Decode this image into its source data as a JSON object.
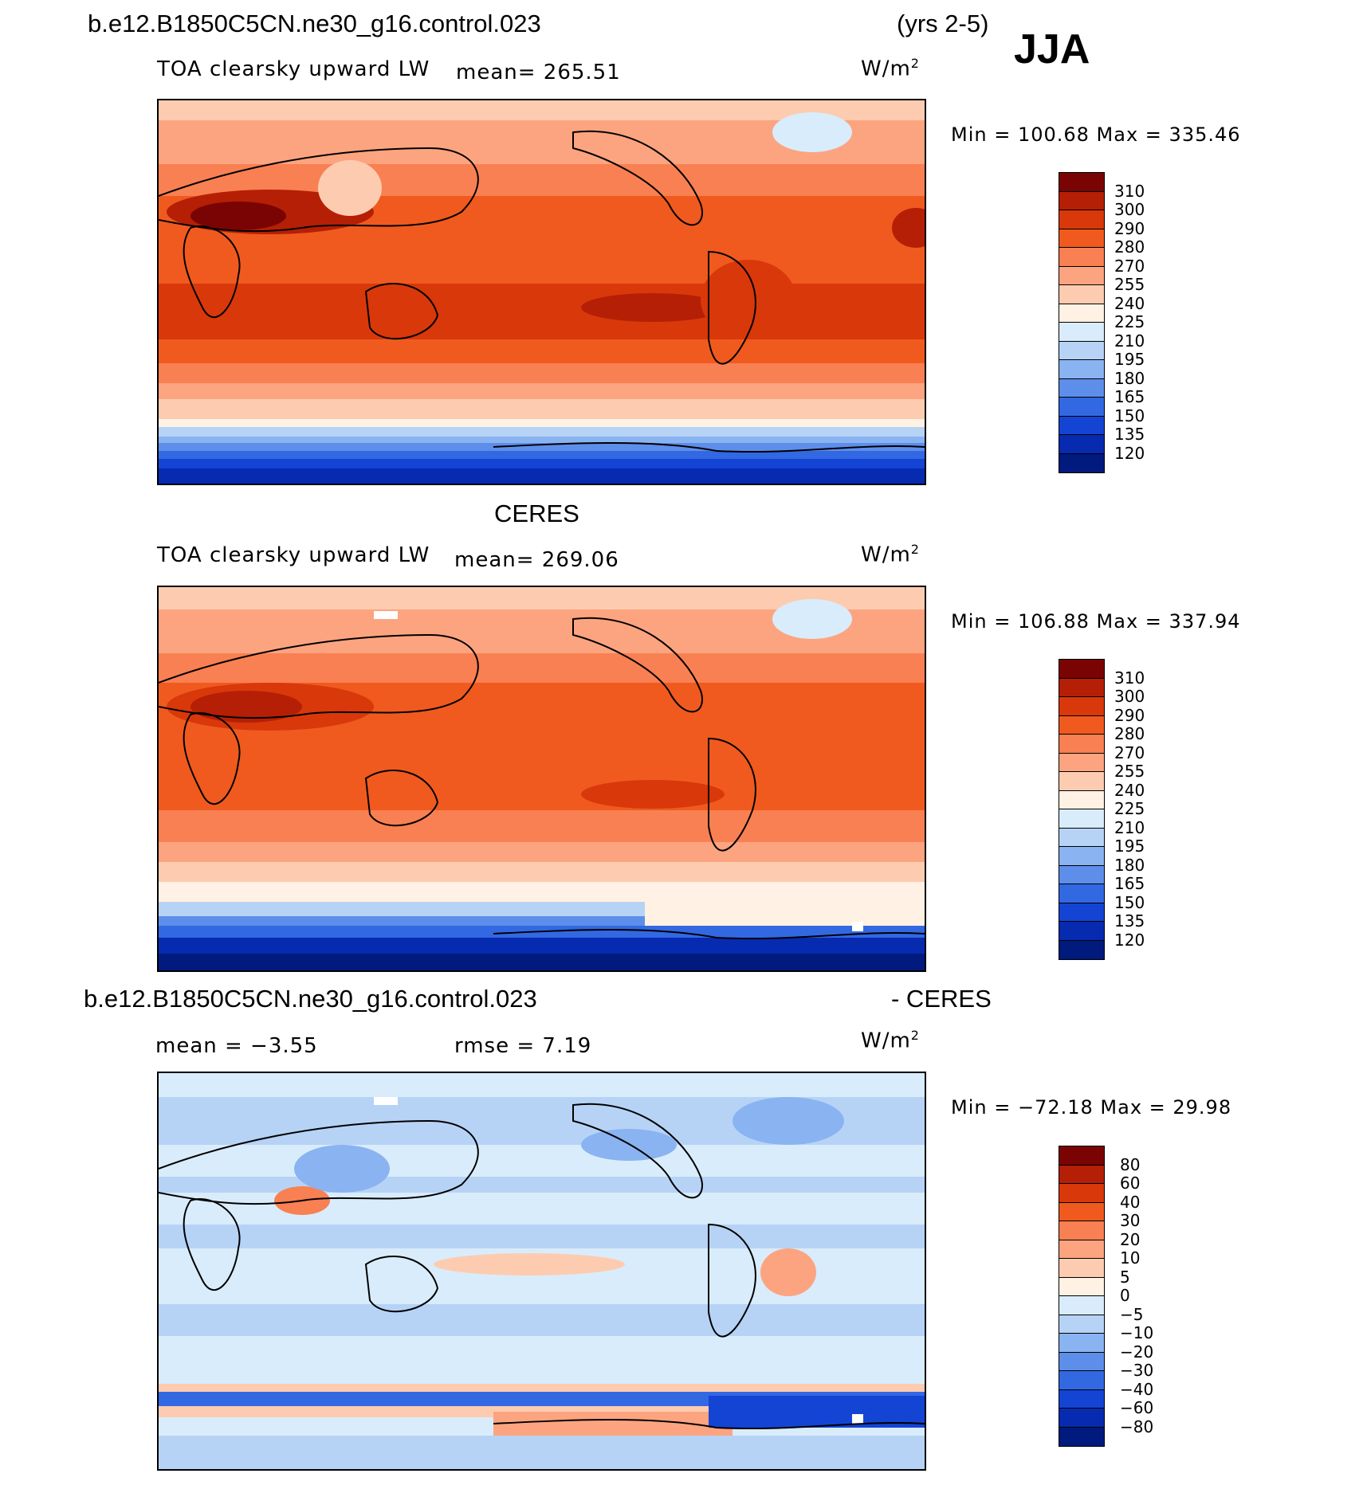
{
  "header": {
    "case_name": "b.e12.B1850C5CN.ne30_g16.control.023",
    "years": "(yrs 2-5)",
    "season": "JJA"
  },
  "panels": [
    {
      "id": "model",
      "title": "",
      "variable": "TOA clearsky upward LW",
      "mean_text": "mean= 265.51",
      "units": "W/m",
      "units_sup": "2",
      "minmax": "Min = 100.68 Max = 335.46"
    },
    {
      "id": "obs",
      "title": "CERES",
      "variable": "TOA clearsky upward LW",
      "mean_text": "mean= 269.06",
      "units": "W/m",
      "units_sup": "2",
      "minmax": "Min = 106.88 Max = 337.94"
    },
    {
      "id": "diff",
      "title": "b.e12.B1850C5CN.ne30_g16.control.023",
      "title2": "- CERES",
      "mean_text": "mean =   −3.55",
      "rmse_text": "rmse =    7.19",
      "units": "W/m",
      "units_sup": "2",
      "minmax": "Min = −72.18 Max =   29.98"
    }
  ],
  "colorbars": {
    "abs_levels": [
      "310",
      "300",
      "290",
      "280",
      "270",
      "255",
      "240",
      "225",
      "210",
      "195",
      "180",
      "165",
      "150",
      "135",
      "120"
    ],
    "abs_colors": [
      "#7a0403",
      "#b51f05",
      "#d9380a",
      "#f05a1f",
      "#f98052",
      "#fca480",
      "#fdccb0",
      "#fff1e3",
      "#d9ecfb",
      "#b6d3f6",
      "#8ab3f1",
      "#5d8eea",
      "#3368e3",
      "#1444d4",
      "#062bb0",
      "#011a7d"
    ],
    "diff_levels": [
      "80",
      "60",
      "40",
      "30",
      "20",
      "10",
      "5",
      "0",
      "−5",
      "−10",
      "−20",
      "−30",
      "−40",
      "−60",
      "−80"
    ],
    "diff_colors": [
      "#7a0403",
      "#b51f05",
      "#d9380a",
      "#f05a1f",
      "#f98052",
      "#fca480",
      "#fdccb0",
      "#fff1e3",
      "#d9ecfb",
      "#b6d3f6",
      "#8ab3f1",
      "#5d8eea",
      "#3368e3",
      "#1444d4",
      "#062bb0",
      "#011a7d"
    ]
  },
  "chart_data": [
    {
      "type": "heatmap",
      "title": "b.e12.B1850C5CN.ne30_g16.control.023",
      "subtitle": "TOA clearsky upward LW",
      "units": "W/m2",
      "mean": 265.51,
      "min": 100.68,
      "max": 335.46,
      "contour_levels": [
        120,
        135,
        150,
        165,
        180,
        195,
        210,
        225,
        240,
        255,
        270,
        280,
        290,
        300,
        310
      ]
    },
    {
      "type": "heatmap",
      "title": "CERES",
      "subtitle": "TOA clearsky upward LW",
      "units": "W/m2",
      "mean": 269.06,
      "min": 106.88,
      "max": 337.94,
      "contour_levels": [
        120,
        135,
        150,
        165,
        180,
        195,
        210,
        225,
        240,
        255,
        270,
        280,
        290,
        300,
        310
      ]
    },
    {
      "type": "heatmap",
      "title": "b.e12.B1850C5CN.ne30_g16.control.023 - CERES",
      "units": "W/m2",
      "mean": -3.55,
      "rmse": 7.19,
      "min": -72.18,
      "max": 29.98,
      "contour_levels": [
        -80,
        -60,
        -40,
        -30,
        -20,
        -10,
        -5,
        0,
        5,
        10,
        20,
        30,
        40,
        60,
        80
      ]
    }
  ]
}
